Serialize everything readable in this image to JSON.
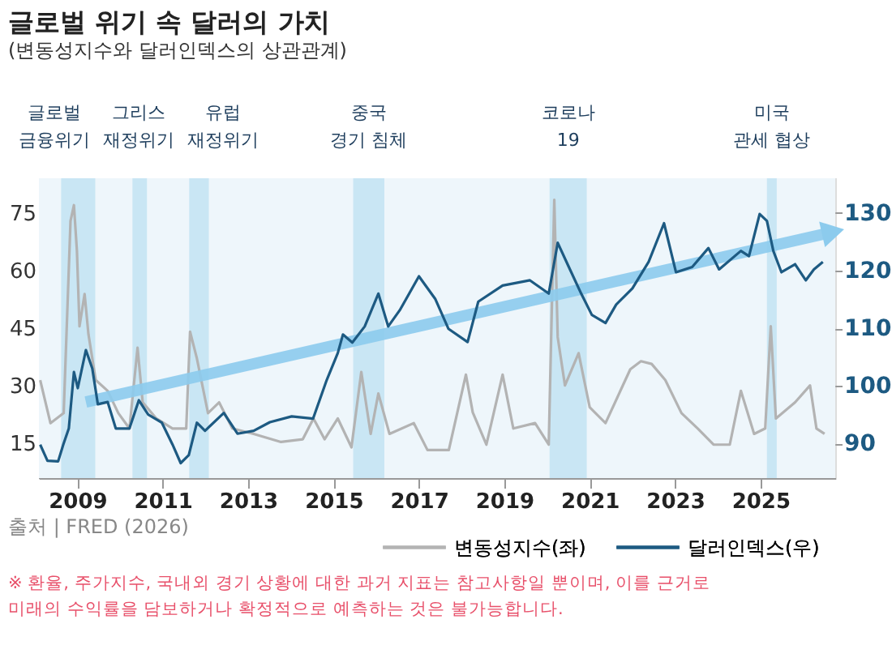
{
  "chart_data": {
    "type": "line",
    "title": "글로벌 위기 속 달러의 가치",
    "subtitle": "(변동성지수와 달러인덱스의 상관관계)",
    "xlim": [
      2008.1,
      2026.75
    ],
    "xticks": [
      2009,
      2011,
      2013,
      2015,
      2017,
      2019,
      2021,
      2023,
      2025
    ],
    "ylim": [
      6,
      84
    ],
    "yticks": [
      15,
      30,
      45,
      60,
      75
    ],
    "y2lim": [
      84,
      136
    ],
    "y2ticks": [
      90,
      100,
      110,
      120,
      130
    ],
    "grid": "y",
    "legend": "bottom right",
    "line_style": "solid",
    "series": [
      {
        "name": "변동성지수(좌)",
        "color": "#b3b3b3",
        "x": [
          2008.13,
          2008.37,
          2008.68,
          2008.84,
          2008.92,
          2008.99,
          2009.05,
          2009.17,
          2009.26,
          2009.43,
          2009.71,
          2009.96,
          2010.22,
          2010.41,
          2010.53,
          2010.85,
          2011.23,
          2011.55,
          2011.64,
          2011.8,
          2012.06,
          2012.32,
          2012.63,
          2013.13,
          2013.77,
          2014.28,
          2014.53,
          2014.79,
          2015.1,
          2015.42,
          2015.65,
          2015.87,
          2016.05,
          2016.31,
          2016.88,
          2017.2,
          2017.57,
          2017.7,
          2018.1,
          2018.26,
          2018.58,
          2018.96,
          2019.21,
          2019.72,
          2020.04,
          2020.17,
          2020.25,
          2020.42,
          2020.74,
          2021.0,
          2021.37,
          2021.95,
          2022.2,
          2022.45,
          2022.77,
          2023.15,
          2023.53,
          2023.9,
          2024.28,
          2024.54,
          2024.85,
          2025.11,
          2025.24,
          2025.36,
          2025.81,
          2026.16,
          2026.31,
          2026.5
        ],
        "values": [
          31.5,
          20.3,
          22.9,
          72.9,
          77,
          65.1,
          45.5,
          53.9,
          43.4,
          31.5,
          28.7,
          22.9,
          18.9,
          39.9,
          25.7,
          21.5,
          18.9,
          18.9,
          44.1,
          37.1,
          22.9,
          25.7,
          18.9,
          17.5,
          15.4,
          16.1,
          21.5,
          16.1,
          21.5,
          14,
          33.6,
          17.5,
          28,
          17.5,
          20.3,
          13.3,
          13.3,
          13.3,
          32.9,
          23.1,
          14.7,
          32.9,
          18.9,
          20.3,
          14.7,
          78.4,
          42.7,
          30.1,
          38.5,
          24.4,
          20.3,
          34.3,
          36.4,
          35.7,
          31.5,
          22.9,
          18.9,
          14.7,
          14.7,
          28.7,
          17.5,
          18.9,
          45.5,
          21.5,
          25.7,
          30.1,
          18.9,
          17.5
        ]
      },
      {
        "name": "달러인덱스(우)",
        "color": "#1d5a82",
        "axis": "y2",
        "x": [
          2008.13,
          2008.3,
          2008.55,
          2008.67,
          2008.8,
          2008.92,
          2009.01,
          2009.2,
          2009.35,
          2009.48,
          2009.71,
          2009.9,
          2010.22,
          2010.44,
          2010.66,
          2010.98,
          2011.23,
          2011.42,
          2011.61,
          2011.8,
          2011.99,
          2012.43,
          2012.75,
          2013.13,
          2013.51,
          2014.02,
          2014.52,
          2014.84,
          2015.1,
          2015.22,
          2015.44,
          2015.73,
          2016.05,
          2016.28,
          2016.55,
          2017.0,
          2017.38,
          2017.69,
          2018.14,
          2018.39,
          2018.96,
          2019.6,
          2020.04,
          2020.25,
          2020.48,
          2020.8,
          2021.05,
          2021.37,
          2021.62,
          2022.0,
          2022.38,
          2022.74,
          2023.02,
          2023.4,
          2023.78,
          2024.03,
          2024.54,
          2024.73,
          2024.98,
          2025.15,
          2025.3,
          2025.49,
          2025.81,
          2026.06,
          2026.25,
          2026.46
        ],
        "values": [
          89.8,
          87,
          86.9,
          89.8,
          92.6,
          102.4,
          99.6,
          106.2,
          103,
          96.8,
          97.2,
          92.6,
          92.6,
          97.5,
          95,
          93.6,
          89.8,
          86.6,
          88,
          93.6,
          92.2,
          95.3,
          91.7,
          92.2,
          93.7,
          94.7,
          94.3,
          101,
          105.7,
          108.9,
          107.5,
          110.3,
          116,
          110.3,
          113.1,
          119,
          115.1,
          109.9,
          107.6,
          114.6,
          117.4,
          118.3,
          116,
          124.8,
          121.1,
          116,
          112.3,
          110.9,
          114.1,
          116.9,
          121.5,
          128.2,
          119.7,
          120.6,
          123.9,
          120.2,
          123.4,
          122.5,
          129.8,
          128.6,
          123.4,
          119.7,
          121.1,
          118.3,
          120.2,
          121.5
        ]
      },
      {
        "type": "line",
        "color": "#8ccbed",
        "axis": "y2",
        "x": [
          2009.2,
          2026.7
        ],
        "values": [
          97.2,
          126.7
        ]
      }
    ],
    "bands": [
      {
        "axis": "x",
        "from": 2008.62,
        "to": 2009.42,
        "label": "글로벌\n금융위기",
        "color": "#c9e6f4"
      },
      {
        "axis": "x",
        "from": 2010.29,
        "to": 2010.63,
        "label": "그리스\n재정위기",
        "color": "#c9e6f4"
      },
      {
        "axis": "x",
        "from": 2011.62,
        "to": 2012.08,
        "label": "유럽\n재정위기",
        "color": "#c9e6f4"
      },
      {
        "axis": "x",
        "from": 2015.46,
        "to": 2016.19,
        "label": "중국\n경기 침체",
        "color": "#c9e6f4"
      },
      {
        "axis": "x",
        "from": 2020.06,
        "to": 2020.93,
        "label": "코로나\n19",
        "color": "#c9e6f4"
      },
      {
        "axis": "x",
        "from": 2025.15,
        "to": 2025.38,
        "label": "미국\n관세 협상",
        "color": "#c9e6f4"
      }
    ],
    "annotations": [
      "출처 | FRED (2026)",
      "※ 환율, 주가지수, 국내외 경기 상황에 대한 과거 지표는 참고사항일 뿐이며, 이를 근거로\n미래의 수익률을 담보하거나 확정적으로 예측하는 것은 불가능합니다."
    ]
  }
}
